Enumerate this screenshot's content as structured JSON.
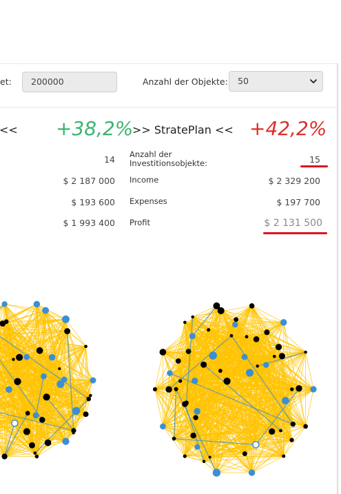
{
  "controls": {
    "budget_label_partial": "et:",
    "budget_value": "200000",
    "objects_label": "Anzahl der Objekte:",
    "objects_value": "50"
  },
  "left_plan": {
    "title_partial": "<<",
    "percent": "+38,2%",
    "percent_color": "#3cb371",
    "count": "14",
    "income": "$ 2 187 000",
    "expenses": "$ 193 600",
    "profit": "$ 1 993 400"
  },
  "right_plan": {
    "title": ">> StratePlan <<",
    "percent": "+42,2%",
    "percent_color": "#d9312e",
    "count_label": "Anzahl der Investitionsobjekte:",
    "count": "15",
    "income_label": "Income",
    "income": "$ 2 329 200",
    "expenses_label": "Expenses",
    "expenses": "$ 197 700",
    "profit_label": "Profit",
    "profit": "$ 2 131 500"
  },
  "colors": {
    "highlight": "#d9141e",
    "network_fill": "#ffc300",
    "node_blue": "#3b8fd4",
    "node_black": "#000000"
  }
}
